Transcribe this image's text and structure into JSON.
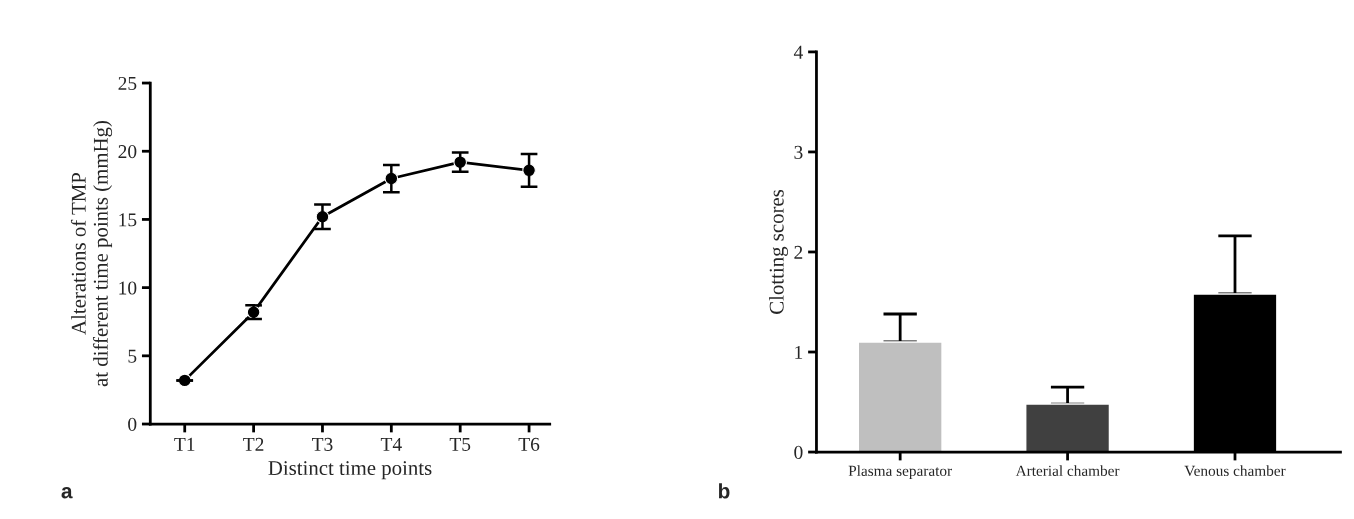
{
  "chart_data": [
    {
      "type": "line",
      "xlabel": "Distinct time points",
      "ylabel": "Alterations of TMP\nat different time points (mmHg)",
      "categories": [
        "T1",
        "T2",
        "T3",
        "T4",
        "T5",
        "T6"
      ],
      "series": [
        {
          "color": "#000000",
          "values": [
            3.2,
            8.2,
            15.2,
            18.0,
            19.2,
            18.6
          ],
          "errors": [
            null,
            0.5,
            0.9,
            1.0,
            0.7,
            1.2
          ]
        }
      ],
      "marker": "circle",
      "ylim": [
        0,
        25
      ],
      "yticks": [
        0,
        5,
        10,
        15,
        20,
        25
      ],
      "grid": false,
      "annotations": [
        "a"
      ]
    },
    {
      "type": "bar",
      "ylabel": "Clotting scores",
      "categories": [
        "Plasma separator",
        "Arterial chamber",
        "Venous chamber"
      ],
      "values": [
        1.1,
        0.48,
        1.58
      ],
      "colors": [
        "#bfbfbf",
        "#404040",
        "#000000"
      ],
      "errors": [
        [
          1.1,
          1.38
        ],
        [
          0.48,
          0.65
        ],
        [
          1.58,
          2.16
        ]
      ],
      "ylim": [
        0,
        4
      ],
      "yticks": [
        0,
        1,
        2,
        3,
        4
      ],
      "grid": false,
      "annotations": [
        "b"
      ]
    }
  ]
}
